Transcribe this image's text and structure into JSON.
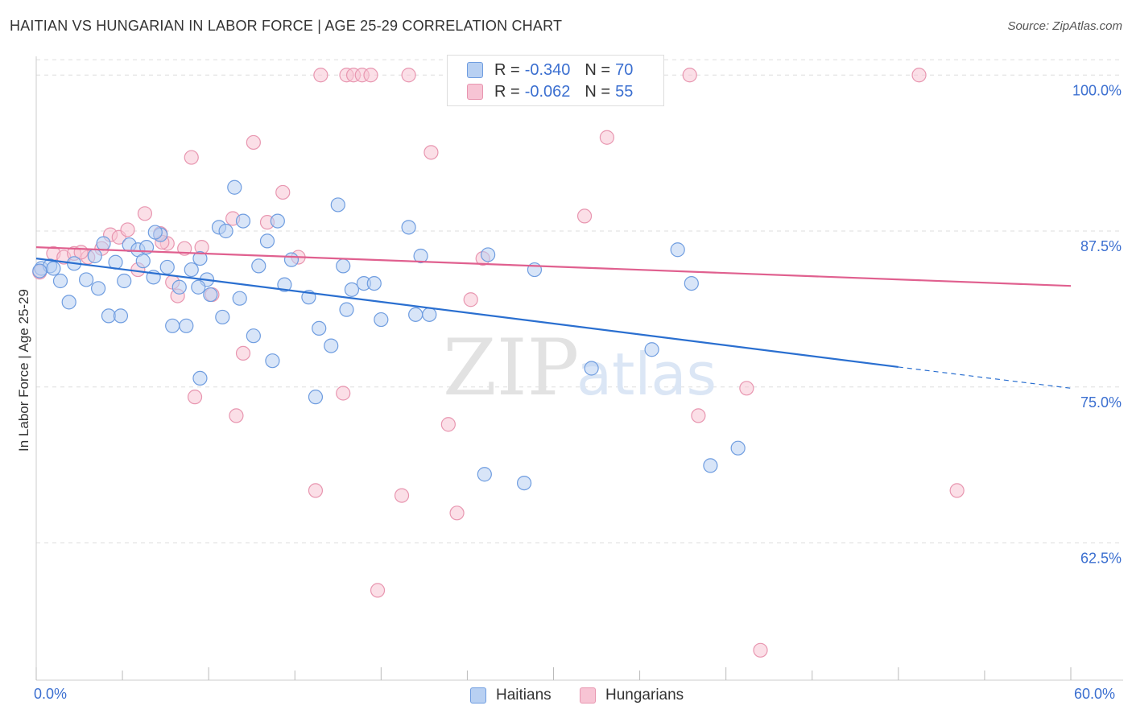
{
  "title": "HAITIAN VS HUNGARIAN IN LABOR FORCE | AGE 25-29 CORRELATION CHART",
  "source": "Source: ZipAtlas.com",
  "watermark": {
    "zip": "ZIP",
    "atlas": "atlas"
  },
  "legend": {
    "r_label": "R =",
    "n_label": "N =",
    "series": [
      {
        "r": "-0.340",
        "n": "70"
      },
      {
        "r": "-0.062",
        "n": "55"
      }
    ]
  },
  "colors": {
    "haitian_fill": "#b8d0f2",
    "haitian_stroke": "#6f9de0",
    "haitian_line": "#2a6fd0",
    "hungarian_fill": "#f7c4d4",
    "hungarian_stroke": "#e896b0",
    "hungarian_line": "#e0608f",
    "tick_label": "#3b6fd0",
    "grid": "#dddddd"
  },
  "chart_data": {
    "type": "scatter",
    "title": "HAITIAN VS HUNGARIAN IN LABOR FORCE | AGE 25-29 CORRELATION CHART",
    "xlabel": "",
    "ylabel": "In Labor Force | Age 25-29",
    "xlim": [
      0,
      60
    ],
    "ylim": [
      51.5,
      101.5
    ],
    "x_tick_labels": [
      "0.0%",
      "60.0%"
    ],
    "y_ticks": [
      62.5,
      75.0,
      87.5,
      100.0
    ],
    "y_tick_labels": [
      "62.5%",
      "75.0%",
      "87.5%",
      "100.0%"
    ],
    "grid": true,
    "legend_position": "top-center",
    "series": [
      {
        "name": "Haitians",
        "r": -0.34,
        "n": 70,
        "trend": {
          "x0": 0,
          "y0": 85.3,
          "x1": 50,
          "y1": 76.6,
          "dashed_to_x": 60,
          "dashed_to_y": 74.9
        },
        "points": [
          [
            0.3,
            84.5
          ],
          [
            0.8,
            84.7
          ],
          [
            1.0,
            84.5
          ],
          [
            1.4,
            83.5
          ],
          [
            1.9,
            81.8
          ],
          [
            2.2,
            84.9
          ],
          [
            2.9,
            83.6
          ],
          [
            3.4,
            85.5
          ],
          [
            3.6,
            82.9
          ],
          [
            3.9,
            86.5
          ],
          [
            4.2,
            80.7
          ],
          [
            4.6,
            85.0
          ],
          [
            4.9,
            80.7
          ],
          [
            5.1,
            83.5
          ],
          [
            5.4,
            86.4
          ],
          [
            5.9,
            86.0
          ],
          [
            6.2,
            85.1
          ],
          [
            6.4,
            86.2
          ],
          [
            6.8,
            83.8
          ],
          [
            7.2,
            87.2
          ],
          [
            7.6,
            84.6
          ],
          [
            7.9,
            79.9
          ],
          [
            8.3,
            83.0
          ],
          [
            8.7,
            79.9
          ],
          [
            9.0,
            84.4
          ],
          [
            9.5,
            85.3
          ],
          [
            9.5,
            75.7
          ],
          [
            9.9,
            83.6
          ],
          [
            10.1,
            82.4
          ],
          [
            10.6,
            87.8
          ],
          [
            10.8,
            80.6
          ],
          [
            11.0,
            87.5
          ],
          [
            11.5,
            91.0
          ],
          [
            11.8,
            82.1
          ],
          [
            12.0,
            88.3
          ],
          [
            12.6,
            79.1
          ],
          [
            12.9,
            84.7
          ],
          [
            13.4,
            86.7
          ],
          [
            13.7,
            77.1
          ],
          [
            14.0,
            88.3
          ],
          [
            14.4,
            83.2
          ],
          [
            14.8,
            85.2
          ],
          [
            15.8,
            82.2
          ],
          [
            16.2,
            74.2
          ],
          [
            16.4,
            79.7
          ],
          [
            17.1,
            78.3
          ],
          [
            17.5,
            89.6
          ],
          [
            17.8,
            84.7
          ],
          [
            18.0,
            81.2
          ],
          [
            18.3,
            82.8
          ],
          [
            19.0,
            83.3
          ],
          [
            19.6,
            83.3
          ],
          [
            20.0,
            80.4
          ],
          [
            21.6,
            87.8
          ],
          [
            22.0,
            80.8
          ],
          [
            22.3,
            85.5
          ],
          [
            22.8,
            80.8
          ],
          [
            26.0,
            68.0
          ],
          [
            26.2,
            85.6
          ],
          [
            28.3,
            67.3
          ],
          [
            28.9,
            84.4
          ],
          [
            32.2,
            76.5
          ],
          [
            35.7,
            78.0
          ],
          [
            37.2,
            86.0
          ],
          [
            38.0,
            83.3
          ],
          [
            39.1,
            68.7
          ],
          [
            40.7,
            70.1
          ],
          [
            0.2,
            84.3
          ],
          [
            9.4,
            83.0
          ],
          [
            6.9,
            87.4
          ]
        ]
      },
      {
        "name": "Hungarians",
        "r": -0.062,
        "n": 55,
        "trend": {
          "x0": 0,
          "y0": 86.2,
          "x1": 60,
          "y1": 83.1
        },
        "points": [
          [
            0.2,
            84.2
          ],
          [
            1.0,
            85.7
          ],
          [
            1.6,
            85.4
          ],
          [
            2.2,
            85.7
          ],
          [
            3.0,
            85.4
          ],
          [
            3.8,
            86.1
          ],
          [
            4.3,
            87.2
          ],
          [
            4.8,
            87.0
          ],
          [
            5.3,
            87.6
          ],
          [
            5.9,
            84.4
          ],
          [
            6.3,
            88.9
          ],
          [
            7.2,
            87.3
          ],
          [
            7.6,
            86.5
          ],
          [
            7.9,
            83.4
          ],
          [
            8.2,
            82.3
          ],
          [
            8.6,
            86.1
          ],
          [
            9.2,
            74.2
          ],
          [
            9.0,
            93.4
          ],
          [
            9.6,
            86.2
          ],
          [
            10.2,
            82.4
          ],
          [
            11.4,
            88.5
          ],
          [
            11.6,
            72.7
          ],
          [
            12.0,
            77.7
          ],
          [
            12.6,
            94.6
          ],
          [
            13.4,
            88.2
          ],
          [
            14.3,
            90.6
          ],
          [
            15.2,
            85.4
          ],
          [
            16.2,
            66.7
          ],
          [
            16.5,
            100.0
          ],
          [
            17.8,
            74.5
          ],
          [
            18.0,
            100.0
          ],
          [
            18.4,
            100.0
          ],
          [
            18.9,
            100.0
          ],
          [
            19.4,
            100.0
          ],
          [
            19.8,
            58.7
          ],
          [
            21.2,
            66.3
          ],
          [
            21.6,
            100.0
          ],
          [
            22.9,
            93.8
          ],
          [
            23.9,
            72.0
          ],
          [
            24.4,
            64.9
          ],
          [
            25.2,
            82.0
          ],
          [
            25.9,
            85.3
          ],
          [
            29.0,
            100.0
          ],
          [
            30.4,
            100.0
          ],
          [
            31.8,
            88.7
          ],
          [
            33.1,
            95.0
          ],
          [
            33.8,
            100.0
          ],
          [
            37.9,
            100.0
          ],
          [
            38.4,
            72.7
          ],
          [
            41.2,
            74.9
          ],
          [
            42.0,
            53.9
          ],
          [
            51.2,
            100.0
          ],
          [
            53.4,
            66.7
          ],
          [
            2.6,
            85.8
          ],
          [
            7.3,
            86.6
          ]
        ]
      }
    ]
  }
}
